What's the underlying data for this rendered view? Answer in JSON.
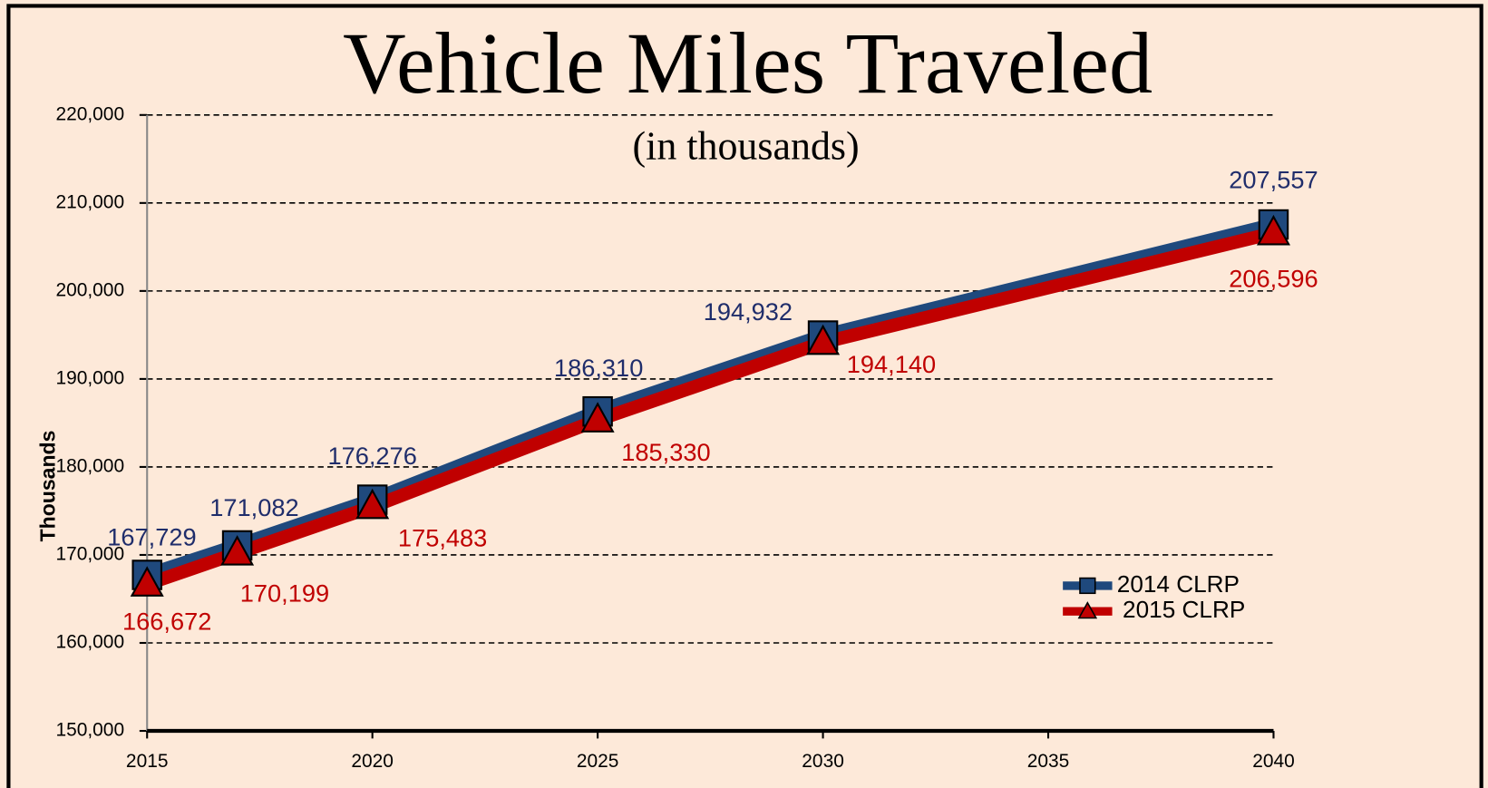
{
  "chart_data": {
    "type": "line",
    "title": "Vehicle Miles Traveled",
    "subtitle": "(in thousands)",
    "y_label": "Thousands",
    "x": [
      2015,
      2017,
      2020,
      2025,
      2030,
      2040
    ],
    "series": [
      {
        "name": "2014 CLRP",
        "color": "#1f497d",
        "label_color": "#1f2d6b",
        "marker": "square",
        "values": [
          167729,
          171082,
          176276,
          186310,
          194932,
          207557
        ],
        "value_labels": [
          "167,729",
          "171,082",
          "176,276",
          "186,310",
          "194,932",
          "207,557"
        ]
      },
      {
        "name": "2015 CLRP",
        "color": "#c00000",
        "label_color": "#c00000",
        "marker": "triangle",
        "values": [
          166672,
          170199,
          175483,
          185330,
          194140,
          206596
        ],
        "value_labels": [
          "166,672",
          "170,199",
          "175,483",
          "185,330",
          "194,140",
          "206,596"
        ]
      }
    ],
    "xlim": [
      2015,
      2040
    ],
    "xticks": [
      2015,
      2020,
      2025,
      2030,
      2035,
      2040
    ],
    "ylim": [
      150000,
      220000
    ],
    "yticks": [
      {
        "value": 150000,
        "label": "150,000"
      },
      {
        "value": 160000,
        "label": "160,000"
      },
      {
        "value": 170000,
        "label": "170,000"
      },
      {
        "value": 180000,
        "label": "180,000"
      },
      {
        "value": 190000,
        "label": "190,000"
      },
      {
        "value": 200000,
        "label": "200,000"
      },
      {
        "value": 210000,
        "label": "210,000"
      },
      {
        "value": 220000,
        "label": "220,000"
      }
    ],
    "grid": true,
    "legend": "lower right"
  }
}
